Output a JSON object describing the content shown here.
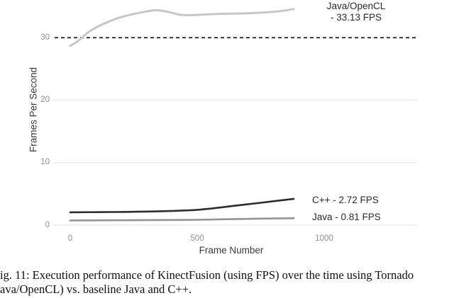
{
  "figure": {
    "caption_line1": "ig. 11: Execution performance of KinectFusion (using FPS) over the time using Tornado",
    "caption_line2": "ava/OpenCL) vs. baseline Java and C++."
  },
  "chart_data": {
    "type": "line",
    "title": "",
    "xlabel": "Frame Number",
    "ylabel": "Frames Per Second",
    "x_ticks": [
      0,
      500,
      1000
    ],
    "x_tick_labels": [
      "0",
      "500",
      "1000"
    ],
    "y_ticks": [
      0,
      10,
      20,
      30
    ],
    "y_tick_labels": [
      "0",
      "10",
      "20",
      "30"
    ],
    "xlim": [
      -65,
      1365
    ],
    "ylim": [
      0,
      36
    ],
    "grid": "horizontal-only",
    "legend_position": "inline-right-of-lines",
    "colors": {
      "gridline": "#e7e7e7",
      "reference_line": "#1f1f1f",
      "tick_text": "#8f8f8f",
      "axis_title_text": "#3a3a3a",
      "legend_text": "#2b2b2b"
    },
    "reference_line": {
      "y": 30,
      "style": "dashed",
      "color": "#1f1f1f"
    },
    "series": [
      {
        "name": "Java/OpenCL",
        "legend_line1": "Java/OpenCL",
        "legend_line2": "- 33.13 FPS",
        "avg_fps": 33.13,
        "color": "#c7c7c7",
        "x": [
          0,
          35,
          75,
          130,
          185,
          240,
          300,
          340,
          390,
          430,
          470,
          520,
          575,
          630,
          690,
          745,
          800,
          845,
          880
        ],
        "y": [
          28.7,
          29.6,
          31.0,
          32.2,
          33.1,
          33.7,
          34.2,
          34.4,
          34.1,
          33.7,
          33.6,
          33.7,
          33.8,
          33.85,
          33.9,
          34.0,
          34.15,
          34.35,
          34.6
        ]
      },
      {
        "name": "C++",
        "label": "C++ - 2.72 FPS",
        "avg_fps": 2.72,
        "color": "#2d2d2d",
        "x": [
          0,
          180,
          340,
          500,
          650,
          880
        ],
        "y": [
          2.05,
          2.1,
          2.2,
          2.45,
          3.1,
          4.2
        ]
      },
      {
        "name": "Java",
        "label": "Java - 0.81 FPS",
        "avg_fps": 0.81,
        "color": "#949494",
        "x": [
          0,
          300,
          500,
          700,
          880
        ],
        "y": [
          0.75,
          0.8,
          0.85,
          1.0,
          1.1
        ]
      }
    ]
  }
}
